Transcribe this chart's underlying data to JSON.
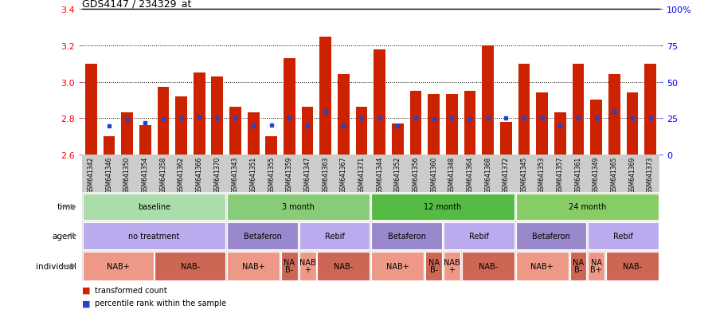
{
  "title": "GDS4147 / 234329_at",
  "samples": [
    "GSM641342",
    "GSM641346",
    "GSM641350",
    "GSM641354",
    "GSM641358",
    "GSM641362",
    "GSM641366",
    "GSM641370",
    "GSM641343",
    "GSM641351",
    "GSM641355",
    "GSM641359",
    "GSM641347",
    "GSM641363",
    "GSM641367",
    "GSM641371",
    "GSM641344",
    "GSM641352",
    "GSM641356",
    "GSM641360",
    "GSM641348",
    "GSM641364",
    "GSM641368",
    "GSM641372",
    "GSM641345",
    "GSM641353",
    "GSM641357",
    "GSM641361",
    "GSM641349",
    "GSM641365",
    "GSM641369",
    "GSM641373"
  ],
  "bar_heights": [
    3.1,
    2.7,
    2.83,
    2.76,
    2.97,
    2.92,
    3.05,
    3.03,
    2.86,
    2.83,
    2.7,
    3.13,
    2.86,
    3.25,
    3.04,
    2.86,
    3.18,
    2.77,
    2.95,
    2.93,
    2.93,
    2.95,
    3.2,
    2.78,
    3.1,
    2.94,
    2.83,
    3.1,
    2.9,
    3.04,
    2.94,
    3.1
  ],
  "blue_marks": [
    null,
    2.755,
    2.793,
    2.775,
    2.795,
    2.8,
    2.803,
    2.8,
    2.8,
    2.755,
    2.76,
    2.8,
    2.755,
    2.835,
    2.755,
    2.8,
    2.8,
    2.755,
    2.8,
    2.795,
    2.8,
    2.795,
    2.8,
    2.8,
    2.8,
    2.8,
    2.755,
    2.8,
    2.8,
    2.835,
    2.8,
    2.8
  ],
  "ymin": 2.6,
  "ymax": 3.4,
  "yticks": [
    2.6,
    2.8,
    3.0,
    3.2,
    3.4
  ],
  "ytick_labels": [
    "2.6",
    "2.8",
    "3.0",
    "3.2",
    "3.4"
  ],
  "right_yticks_pct": [
    0,
    25,
    50,
    75,
    100
  ],
  "right_ytick_labels": [
    "0",
    "25",
    "50",
    "75",
    "100%"
  ],
  "dotted_lines": [
    2.8,
    3.0,
    3.2
  ],
  "bar_color": "#cc2200",
  "blue_color": "#2244cc",
  "background_color": "#ffffff",
  "xtick_bg": "#cccccc",
  "time_groups": [
    {
      "text": "baseline",
      "start": 0,
      "end": 7,
      "color": "#aaddaa"
    },
    {
      "text": "3 month",
      "start": 8,
      "end": 15,
      "color": "#88cc77"
    },
    {
      "text": "12 month",
      "start": 16,
      "end": 23,
      "color": "#55bb44"
    },
    {
      "text": "24 month",
      "start": 24,
      "end": 31,
      "color": "#88cc66"
    }
  ],
  "agent_groups": [
    {
      "text": "no treatment",
      "start": 0,
      "end": 7,
      "color": "#bbaaee"
    },
    {
      "text": "Betaferon",
      "start": 8,
      "end": 11,
      "color": "#9988cc"
    },
    {
      "text": "Rebif",
      "start": 12,
      "end": 15,
      "color": "#bbaaee"
    },
    {
      "text": "Betaferon",
      "start": 16,
      "end": 19,
      "color": "#9988cc"
    },
    {
      "text": "Rebif",
      "start": 20,
      "end": 23,
      "color": "#bbaaee"
    },
    {
      "text": "Betaferon",
      "start": 24,
      "end": 27,
      "color": "#9988cc"
    },
    {
      "text": "Rebif",
      "start": 28,
      "end": 31,
      "color": "#bbaaee"
    }
  ],
  "indiv_groups": [
    {
      "text": "NAB+",
      "start": 0,
      "end": 3,
      "color": "#ee9988"
    },
    {
      "text": "NAB-",
      "start": 4,
      "end": 7,
      "color": "#cc6655"
    },
    {
      "text": "NAB+",
      "start": 8,
      "end": 10,
      "color": "#ee9988"
    },
    {
      "text": "NA\nB-",
      "start": 11,
      "end": 11,
      "color": "#cc6655"
    },
    {
      "text": "NAB\n+",
      "start": 12,
      "end": 12,
      "color": "#ee9988"
    },
    {
      "text": "NAB-",
      "start": 13,
      "end": 15,
      "color": "#cc6655"
    },
    {
      "text": "NAB+",
      "start": 16,
      "end": 18,
      "color": "#ee9988"
    },
    {
      "text": "NA\nB-",
      "start": 19,
      "end": 19,
      "color": "#cc6655"
    },
    {
      "text": "NAB\n+",
      "start": 20,
      "end": 20,
      "color": "#ee9988"
    },
    {
      "text": "NAB-",
      "start": 21,
      "end": 23,
      "color": "#cc6655"
    },
    {
      "text": "NAB+",
      "start": 24,
      "end": 26,
      "color": "#ee9988"
    },
    {
      "text": "NA\nB-",
      "start": 27,
      "end": 27,
      "color": "#cc6655"
    },
    {
      "text": "NA\nB+",
      "start": 28,
      "end": 28,
      "color": "#ee9988"
    },
    {
      "text": "NAB-",
      "start": 29,
      "end": 31,
      "color": "#cc6655"
    }
  ],
  "legend_items": [
    {
      "color": "#cc2200",
      "label": "transformed count"
    },
    {
      "color": "#2244cc",
      "label": "percentile rank within the sample"
    }
  ],
  "row_label_color": "#888888",
  "row_arrow_color": "#888888"
}
